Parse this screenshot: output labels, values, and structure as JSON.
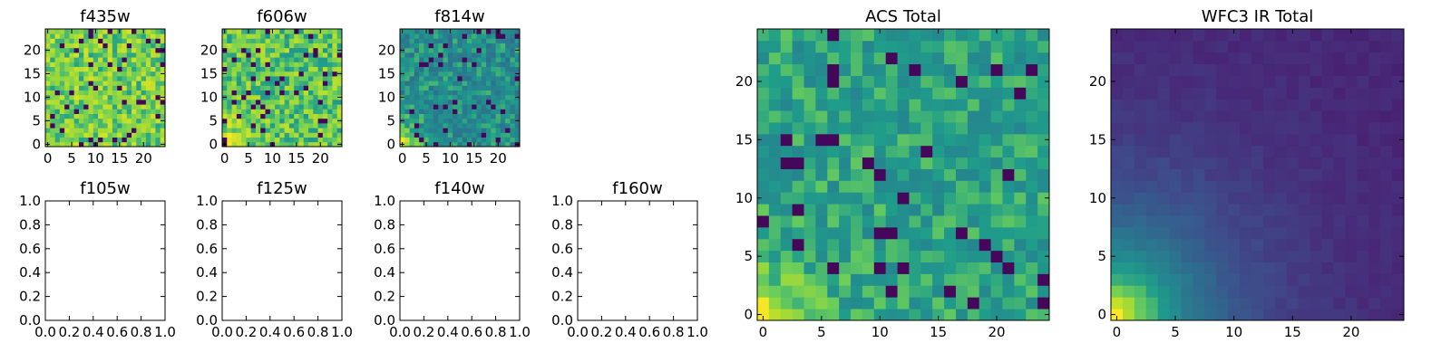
{
  "chart_data": [
    {
      "type": "heatmap",
      "title": "f435w",
      "colormap": "viridis",
      "xlim": [
        -0.5,
        24.5
      ],
      "ylim": [
        -0.5,
        24.5
      ],
      "xticks": [
        0,
        5,
        10,
        15,
        20
      ],
      "yticks": [
        0,
        5,
        10,
        15,
        20
      ],
      "grid_size": [
        25,
        25
      ],
      "brightest_region": "none (uniform noise)",
      "dominant_level": "yellow-green"
    },
    {
      "type": "heatmap",
      "title": "f606w",
      "colormap": "viridis",
      "xlim": [
        -0.5,
        24.5
      ],
      "ylim": [
        -0.5,
        24.5
      ],
      "xticks": [
        0,
        5,
        10,
        15,
        20
      ],
      "yticks": [
        0,
        5,
        10,
        15,
        20
      ],
      "grid_size": [
        25,
        25
      ],
      "brightest_region": "bottom-left corner",
      "dominant_level": "yellow-green"
    },
    {
      "type": "heatmap",
      "title": "f814w",
      "colormap": "viridis",
      "xlim": [
        -0.5,
        24.5
      ],
      "ylim": [
        -0.5,
        24.5
      ],
      "xticks": [
        0,
        5,
        10,
        15,
        20
      ],
      "yticks": [
        0,
        5,
        10,
        15,
        20
      ],
      "grid_size": [
        25,
        25
      ],
      "brightest_region": "bottom-left corner",
      "dominant_level": "teal"
    },
    {
      "type": "empty",
      "title": "f105w",
      "xlim": [
        0.0,
        1.0
      ],
      "ylim": [
        0.0,
        1.0
      ],
      "xtick_labels": [
        "0.0",
        "0.2",
        "0.4",
        "0.6",
        "0.8",
        "1.0"
      ],
      "ytick_labels": [
        "0.0",
        "0.2",
        "0.4",
        "0.6",
        "0.8",
        "1.0"
      ]
    },
    {
      "type": "empty",
      "title": "f125w",
      "xlim": [
        0.0,
        1.0
      ],
      "ylim": [
        0.0,
        1.0
      ],
      "xtick_labels": [
        "0.0",
        "0.2",
        "0.4",
        "0.6",
        "0.8",
        "1.0"
      ],
      "ytick_labels": [
        "0.0",
        "0.2",
        "0.4",
        "0.6",
        "0.8",
        "1.0"
      ]
    },
    {
      "type": "empty",
      "title": "f140w",
      "xlim": [
        0.0,
        1.0
      ],
      "ylim": [
        0.0,
        1.0
      ],
      "xtick_labels": [
        "0.0",
        "0.2",
        "0.4",
        "0.6",
        "0.8",
        "1.0"
      ],
      "ytick_labels": [
        "0.0",
        "0.2",
        "0.4",
        "0.6",
        "0.8",
        "1.0"
      ]
    },
    {
      "type": "empty",
      "title": "f160w",
      "xlim": [
        0.0,
        1.0
      ],
      "ylim": [
        0.0,
        1.0
      ],
      "xtick_labels": [
        "0.0",
        "0.2",
        "0.4",
        "0.6",
        "0.8",
        "1.0"
      ],
      "ytick_labels": [
        "0.0",
        "0.2",
        "0.4",
        "0.6",
        "0.8",
        "1.0"
      ]
    },
    {
      "type": "heatmap",
      "title": "ACS Total",
      "colormap": "viridis",
      "xlim": [
        -0.5,
        24.5
      ],
      "ylim": [
        -0.5,
        24.5
      ],
      "xticks": [
        0,
        5,
        10,
        15,
        20
      ],
      "yticks": [
        0,
        5,
        10,
        15,
        20
      ],
      "grid_size": [
        25,
        25
      ],
      "brightest_region": "bottom-left corner",
      "dominant_level": "green"
    },
    {
      "type": "heatmap",
      "title": "WFC3 IR Total",
      "colormap": "viridis",
      "xlim": [
        -0.5,
        24.5
      ],
      "ylim": [
        -0.5,
        24.5
      ],
      "xticks": [
        0,
        5,
        10,
        15,
        20
      ],
      "yticks": [
        0,
        5,
        10,
        15,
        20
      ],
      "grid_size": [
        25,
        25
      ],
      "brightest_region": "bottom-left corner",
      "dominant_level": "dark purple"
    }
  ]
}
